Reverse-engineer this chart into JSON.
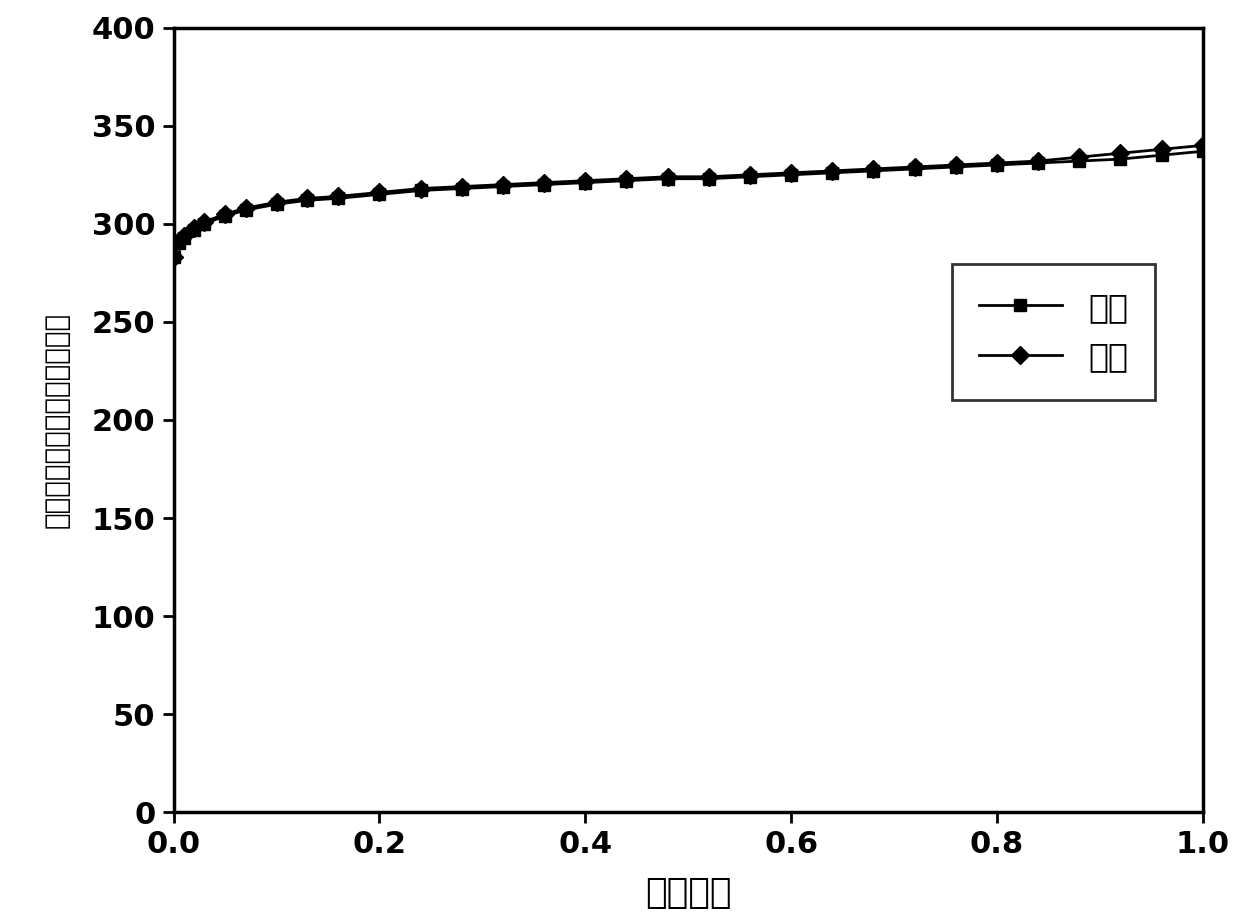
{
  "adsorption_x": [
    0.0,
    0.005,
    0.01,
    0.02,
    0.03,
    0.05,
    0.07,
    0.1,
    0.13,
    0.16,
    0.2,
    0.24,
    0.28,
    0.32,
    0.36,
    0.4,
    0.44,
    0.48,
    0.52,
    0.56,
    0.6,
    0.64,
    0.68,
    0.72,
    0.76,
    0.8,
    0.84,
    0.88,
    0.92,
    0.96,
    1.0
  ],
  "adsorption_y": [
    283,
    290,
    293,
    297,
    300,
    304,
    307,
    310,
    312,
    313,
    315,
    317,
    318,
    319,
    320,
    321,
    322,
    323,
    323,
    324,
    325,
    326,
    327,
    328,
    329,
    330,
    331,
    332,
    333,
    335,
    337
  ],
  "desorption_x": [
    0.0,
    0.005,
    0.01,
    0.02,
    0.03,
    0.05,
    0.07,
    0.1,
    0.13,
    0.16,
    0.2,
    0.24,
    0.28,
    0.32,
    0.36,
    0.4,
    0.44,
    0.48,
    0.52,
    0.56,
    0.6,
    0.64,
    0.68,
    0.72,
    0.76,
    0.8,
    0.84,
    0.88,
    0.92,
    0.96,
    1.0
  ],
  "desorption_y": [
    283,
    291,
    294,
    298,
    301,
    305,
    308,
    311,
    313,
    314,
    316,
    318,
    319,
    320,
    321,
    322,
    323,
    324,
    324,
    325,
    326,
    327,
    328,
    329,
    330,
    331,
    332,
    334,
    336,
    338,
    340
  ],
  "xlabel": "相对压力",
  "ylabel": "吸附容量（毫升每克，标况）",
  "legend_adsorption": "吸附",
  "legend_desorption": "脱附",
  "xlim": [
    0.0,
    1.0
  ],
  "ylim": [
    0,
    400
  ],
  "yticks": [
    0,
    50,
    100,
    150,
    200,
    250,
    300,
    350,
    400
  ],
  "xticks": [
    0.0,
    0.2,
    0.4,
    0.6,
    0.8,
    1.0
  ],
  "line_color": "#000000",
  "background_color": "#ffffff",
  "xlabel_fontsize": 26,
  "ylabel_fontsize": 20,
  "tick_fontsize": 22,
  "legend_fontsize": 24,
  "marker_size": 9,
  "line_width": 2.0,
  "spine_linewidth": 2.5
}
